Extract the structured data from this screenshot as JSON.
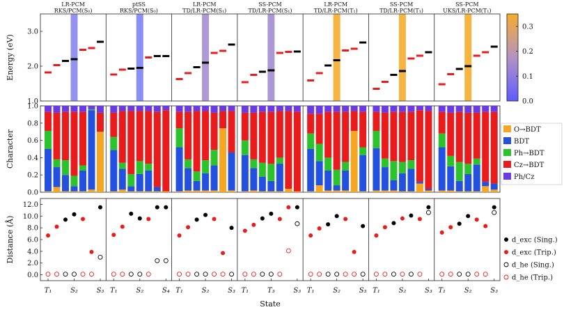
{
  "chart_data": {
    "type": "multi-panel",
    "columns": [
      {
        "title1": "LR-PCM",
        "title2": "RKS/PCM(S₀)",
        "band_color": "#8a87ee",
        "band_value": 0.18
      },
      {
        "title1": "ptSS",
        "title2": "RKS/PCM(S₀)",
        "band_color": "#7e82f2",
        "band_value": 0.16
      },
      {
        "title1": "LR-PCM",
        "title2": "TD/LR-PCM(S₁)",
        "band_color": "#a48fcf",
        "band_value": 0.22
      },
      {
        "title1": "SS-PCM",
        "title2": "TD/LR-PCM(S₁)",
        "band_color": "#a18ccf",
        "band_value": 0.21
      },
      {
        "title1": "LR-PCM",
        "title2": "TD/LR-PCM(T₁)",
        "band_color": "#f5ac2e",
        "band_value": 0.35
      },
      {
        "title1": "SS-PCM",
        "title2": "TD/LR-PCM(T₁)",
        "band_color": "#f5ac2e",
        "band_value": 0.35
      },
      {
        "title1": "SS-PCM",
        "title2": "UKS/LR-PCM(T₁)",
        "band_color": "#f5ac2e",
        "band_value": 0.35
      }
    ],
    "energy": {
      "ylabel": "Energy (eV)",
      "ylim": [
        1.0,
        3.5
      ],
      "yticks": [
        "1.0",
        "2.0",
        "3.0"
      ],
      "series": [
        {
          "red": [
            1.82,
            2.03,
            2.47,
            2.52
          ],
          "black": [
            2.15,
            2.2,
            2.7
          ]
        },
        {
          "red": [
            1.76,
            1.9,
            2.25
          ],
          "black": [
            1.93,
            1.95,
            2.29,
            2.29
          ]
        },
        {
          "red": [
            1.63,
            1.8,
            2.38,
            2.44
          ],
          "black": [
            1.97,
            2.1,
            2.62
          ]
        },
        {
          "red": [
            1.54,
            1.75,
            2.38,
            2.41
          ],
          "black": [
            1.84,
            1.88,
            2.42
          ]
        },
        {
          "red": [
            1.59,
            1.8,
            2.45,
            2.5
          ],
          "black": [
            2.02,
            2.17,
            2.68
          ]
        },
        {
          "red": [
            1.35,
            1.55,
            2.22,
            2.3
          ],
          "black": [
            1.75,
            1.86,
            2.4
          ]
        },
        {
          "red": [
            1.48,
            1.77,
            2.3,
            2.4
          ],
          "black": [
            1.92,
            2.0,
            2.56
          ]
        }
      ]
    },
    "colorbar": {
      "min": 0.0,
      "max": 0.35,
      "ticks": [
        "0.0",
        "0.1",
        "0.2",
        "0.3"
      ],
      "colors": [
        "#5c5cff",
        "#f5ac2e"
      ]
    },
    "character": {
      "ylabel": "Character",
      "ylim": [
        0.0,
        1.0
      ],
      "yticks": [
        "0.0",
        "0.2",
        "0.4",
        "0.6",
        "0.8",
        "1.0"
      ],
      "legend": [
        "O→BDT",
        "BDT",
        "Ph→BDT",
        "Cz→BDT",
        "Ph/Cz"
      ],
      "legend_colors": [
        "#f5a623",
        "#2450e0",
        "#2bc22b",
        "#e81c1c",
        "#6a3be3"
      ],
      "bars": [
        [
          [
            0.01,
            0.49,
            0.21,
            0.22,
            0.07
          ],
          [
            0.06,
            0.23,
            0.09,
            0.54,
            0.08
          ],
          [
            0.01,
            0.19,
            0.17,
            0.56,
            0.07
          ],
          [
            0.01,
            0.06,
            0.12,
            0.74,
            0.07
          ],
          [
            0.01,
            0.24,
            0.06,
            0.62,
            0.07
          ],
          [
            0.03,
            0.92,
            0.01,
            0.0,
            0.04
          ],
          [
            0.7,
            0.0,
            0.0,
            0.22,
            0.08
          ]
        ],
        [
          [
            0.01,
            0.48,
            0.15,
            0.28,
            0.08
          ],
          [
            0.03,
            0.24,
            0.07,
            0.6,
            0.06
          ],
          [
            0.01,
            0.06,
            0.14,
            0.73,
            0.06
          ],
          [
            0.01,
            0.2,
            0.15,
            0.58,
            0.06
          ],
          [
            0.01,
            0.24,
            0.08,
            0.61,
            0.06
          ],
          [
            0.01,
            0.05,
            0.0,
            0.87,
            0.07
          ],
          [
            0.01,
            0.0,
            0.0,
            0.94,
            0.05
          ]
        ],
        [
          [
            0.01,
            0.51,
            0.22,
            0.19,
            0.07
          ],
          [
            0.02,
            0.26,
            0.1,
            0.55,
            0.07
          ],
          [
            0.02,
            0.11,
            0.11,
            0.7,
            0.06
          ],
          [
            0.02,
            0.2,
            0.15,
            0.57,
            0.06
          ],
          [
            0.02,
            0.29,
            0.18,
            0.43,
            0.08
          ],
          [
            0.74,
            0.0,
            0.0,
            0.2,
            0.06
          ],
          [
            0.02,
            0.44,
            0.0,
            0.48,
            0.06
          ]
        ],
        [
          [
            0.01,
            0.42,
            0.17,
            0.32,
            0.08
          ],
          [
            0.02,
            0.26,
            0.1,
            0.54,
            0.08
          ],
          [
            0.01,
            0.17,
            0.16,
            0.59,
            0.07
          ],
          [
            0.01,
            0.12,
            0.2,
            0.6,
            0.07
          ],
          [
            0.01,
            0.32,
            0.07,
            0.54,
            0.06
          ],
          [
            0.04,
            0.0,
            0.0,
            0.9,
            0.06
          ],
          [
            0.01,
            0.0,
            0.0,
            0.92,
            0.07
          ]
        ],
        [
          [
            0.01,
            0.49,
            0.18,
            0.23,
            0.09
          ],
          [
            0.08,
            0.28,
            0.2,
            0.35,
            0.09
          ],
          [
            0.02,
            0.23,
            0.15,
            0.53,
            0.07
          ],
          [
            0.02,
            0.06,
            0.18,
            0.67,
            0.07
          ],
          [
            0.02,
            0.23,
            0.1,
            0.58,
            0.07
          ],
          [
            0.71,
            0.0,
            0.0,
            0.23,
            0.06
          ],
          [
            0.01,
            0.42,
            0.09,
            0.41,
            0.07
          ]
        ],
        [
          [
            0.02,
            0.49,
            0.2,
            0.22,
            0.07
          ],
          [
            0.02,
            0.27,
            0.1,
            0.53,
            0.08
          ],
          [
            0.02,
            0.12,
            0.22,
            0.57,
            0.07
          ],
          [
            0.01,
            0.21,
            0.13,
            0.58,
            0.07
          ],
          [
            0.01,
            0.26,
            0.1,
            0.56,
            0.07
          ],
          [
            0.1,
            0.02,
            0.0,
            0.83,
            0.05
          ],
          [
            0.02,
            0.02,
            0.0,
            0.9,
            0.06
          ]
        ],
        [
          [
            0.02,
            0.5,
            0.16,
            0.25,
            0.07
          ],
          [
            0.02,
            0.28,
            0.12,
            0.5,
            0.08
          ],
          [
            0.01,
            0.12,
            0.22,
            0.58,
            0.07
          ],
          [
            0.01,
            0.2,
            0.12,
            0.59,
            0.08
          ],
          [
            0.01,
            0.31,
            0.07,
            0.53,
            0.08
          ],
          [
            0.07,
            0.05,
            0.0,
            0.81,
            0.07
          ],
          [
            0.03,
            0.07,
            0.0,
            0.83,
            0.07
          ]
        ]
      ]
    },
    "distance": {
      "ylabel": "Distance (Å)",
      "ylim": [
        -1.0,
        13.0
      ],
      "yticks": [
        "0.0",
        "2.0",
        "4.0",
        "6.0",
        "8.0",
        "10.0",
        "12.0"
      ],
      "legend": [
        "d_exc (Sing.)",
        "d_exc (Trip.)",
        "d_he (Sing.)",
        "d_he (Trip.)"
      ],
      "points": [
        {
          "exc_trip": [
            [
              0,
              6.7
            ],
            [
              1,
              8.2
            ],
            [
              4,
              9.5
            ],
            [
              5,
              3.9
            ]
          ],
          "exc_sing": [
            [
              2,
              9.4
            ],
            [
              3,
              10.3
            ],
            [
              6,
              11.5
            ]
          ],
          "he_trip": [
            [
              0,
              0.1
            ],
            [
              1,
              0.1
            ],
            [
              4,
              0.1
            ],
            [
              5,
              0.1
            ]
          ],
          "he_sing": [
            [
              2,
              0.1
            ],
            [
              3,
              0.1
            ],
            [
              6,
              3.0
            ]
          ]
        },
        {
          "exc_trip": [
            [
              0,
              6.8
            ],
            [
              1,
              8.2
            ],
            [
              4,
              9.5
            ]
          ],
          "exc_sing": [
            [
              2,
              10.4
            ],
            [
              3,
              9.6
            ],
            [
              5,
              11.5
            ],
            [
              6,
              11.5
            ]
          ],
          "he_trip": [
            [
              0,
              0.1
            ],
            [
              1,
              0.1
            ],
            [
              4,
              0.1
            ]
          ],
          "he_sing": [
            [
              2,
              0.1
            ],
            [
              3,
              0.1
            ],
            [
              5,
              2.4
            ],
            [
              6,
              2.4
            ]
          ]
        },
        {
          "exc_trip": [
            [
              0,
              6.7
            ],
            [
              1,
              8.1
            ],
            [
              4,
              9.5
            ],
            [
              5,
              3.7
            ]
          ],
          "exc_sing": [
            [
              2,
              9.4
            ],
            [
              3,
              10.2
            ],
            [
              6,
              8.0
            ]
          ],
          "he_trip": [
            [
              0,
              0.1
            ],
            [
              1,
              0.1
            ],
            [
              4,
              0.1
            ],
            [
              5,
              0.1
            ]
          ],
          "he_sing": [
            [
              2,
              0.1
            ],
            [
              3,
              0.1
            ],
            [
              6,
              0.1
            ]
          ]
        },
        {
          "exc_trip": [
            [
              0,
              7.5
            ],
            [
              1,
              8.5
            ],
            [
              4,
              9.5
            ],
            [
              5,
              11.5
            ]
          ],
          "exc_sing": [
            [
              2,
              9.6
            ],
            [
              3,
              10.4
            ],
            [
              6,
              11.5
            ]
          ],
          "he_trip": [
            [
              0,
              0.1
            ],
            [
              1,
              0.1
            ],
            [
              4,
              0.1
            ],
            [
              5,
              4.1
            ]
          ],
          "he_sing": [
            [
              2,
              0.1
            ],
            [
              3,
              0.1
            ],
            [
              6,
              8.7
            ]
          ]
        },
        {
          "exc_trip": [
            [
              0,
              6.7
            ],
            [
              1,
              7.9
            ],
            [
              4,
              9.5
            ],
            [
              5,
              3.9
            ]
          ],
          "exc_sing": [
            [
              2,
              8.6
            ],
            [
              3,
              10.0
            ],
            [
              6,
              8.3
            ]
          ],
          "he_trip": [
            [
              0,
              0.1
            ],
            [
              1,
              0.1
            ],
            [
              4,
              0.1
            ],
            [
              5,
              0.1
            ]
          ],
          "he_sing": [
            [
              2,
              0.1
            ],
            [
              3,
              0.1
            ],
            [
              6,
              0.1
            ]
          ]
        },
        {
          "exc_trip": [
            [
              0,
              6.7
            ],
            [
              1,
              8.1
            ],
            [
              3,
              9.6
            ],
            [
              5,
              9.5
            ]
          ],
          "exc_sing": [
            [
              2,
              8.8
            ],
            [
              4,
              10.1
            ],
            [
              6,
              11.5
            ]
          ],
          "he_trip": [
            [
              0,
              0.1
            ],
            [
              1,
              0.1
            ],
            [
              3,
              0.1
            ],
            [
              5,
              0.1
            ]
          ],
          "he_sing": [
            [
              2,
              0.1
            ],
            [
              4,
              0.1
            ],
            [
              6,
              10.6
            ]
          ]
        },
        {
          "exc_trip": [
            [
              0,
              7.2
            ],
            [
              1,
              8.1
            ],
            [
              4,
              9.4
            ],
            [
              5,
              8.3
            ]
          ],
          "exc_sing": [
            [
              2,
              8.7
            ],
            [
              3,
              10.0
            ],
            [
              6,
              11.5
            ]
          ],
          "he_trip": [
            [
              0,
              0.1
            ],
            [
              1,
              0.1
            ],
            [
              4,
              0.1
            ],
            [
              5,
              0.1
            ]
          ],
          "he_sing": [
            [
              2,
              0.1
            ],
            [
              3,
              0.1
            ],
            [
              6,
              10.6
            ]
          ]
        }
      ],
      "xticks": [
        [
          [
            "T₁",
            0,
            "red"
          ],
          [
            "S₂",
            3,
            "black"
          ],
          [
            "S₃",
            6,
            "black"
          ]
        ],
        [
          [
            "T₁",
            0,
            "red"
          ],
          [
            "S₂",
            3,
            "black"
          ],
          [
            "S₄",
            6,
            "black"
          ]
        ],
        [
          [
            "T₁",
            0,
            "red"
          ],
          [
            "S₂",
            3,
            "black"
          ],
          [
            "S₃",
            6,
            "black"
          ]
        ],
        [
          [
            "T₁",
            0,
            "red"
          ],
          [
            "T₃",
            3,
            "red"
          ],
          [
            "S₃",
            6,
            "black"
          ]
        ],
        [
          [
            "T₁",
            0,
            "red"
          ],
          [
            "S₂",
            3,
            "black"
          ],
          [
            "S₃",
            6,
            "black"
          ]
        ],
        [
          [
            "T₁",
            0,
            "red"
          ],
          [
            "S₂",
            3,
            "black"
          ],
          [
            "S₃",
            6,
            "black"
          ]
        ],
        [
          [
            "T₁",
            0,
            "red"
          ],
          [
            "S₂",
            3,
            "black"
          ],
          [
            "S₃",
            6,
            "black"
          ]
        ]
      ],
      "xlabel": "State"
    }
  }
}
